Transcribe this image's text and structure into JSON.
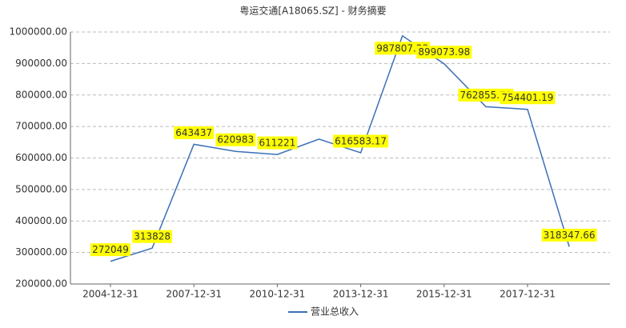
{
  "chart_data": {
    "type": "line",
    "title": "粤运交通[A18065.SZ] - 财务摘要",
    "categories": [
      "2004-12-31",
      null,
      "2007-12-31",
      null,
      "2010-12-31",
      null,
      "2013-12-31",
      null,
      "2015-12-31",
      null,
      "2017-12-31",
      null
    ],
    "series": [
      {
        "name": "营业总收入",
        "color": "#3b6fb6",
        "values": [
          272049,
          313828,
          643437,
          620983,
          611221,
          660000,
          616583.17,
          987807.23,
          899073.98,
          762855.72,
          754401.19,
          318347.66
        ]
      }
    ],
    "ylim": [
      200000,
      1000000
    ],
    "yticks": [
      {
        "value": 200000,
        "label": "200000.00"
      },
      {
        "value": 300000,
        "label": "300000.00"
      },
      {
        "value": 400000,
        "label": "400000.00"
      },
      {
        "value": 500000,
        "label": "500000.00"
      },
      {
        "value": 600000,
        "label": "600000.00"
      },
      {
        "value": 700000,
        "label": "700000.00"
      },
      {
        "value": 800000,
        "label": "800000.00"
      },
      {
        "value": 900000,
        "label": "900000.00"
      },
      {
        "value": 1000000,
        "label": "1000000.00"
      }
    ],
    "grid": true,
    "legend": "bottom"
  }
}
